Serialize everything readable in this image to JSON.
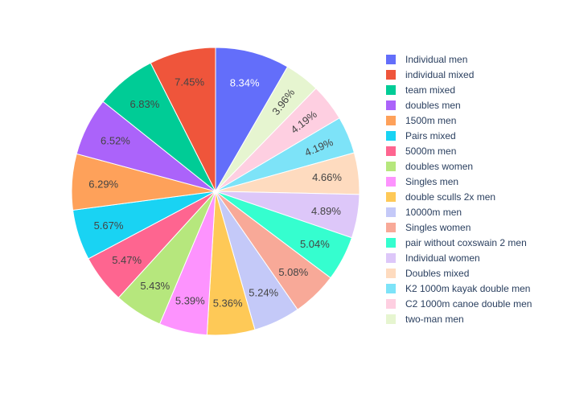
{
  "chart_data": {
    "type": "pie",
    "direction": "clockwise",
    "start_angle_deg": 0,
    "legend_position": "right",
    "slices": [
      {
        "label": "Individual men",
        "percent": 8.34,
        "display": "8.34%",
        "color": "#636efa",
        "label_color": "#ffffff"
      },
      {
        "label": "two-man men",
        "percent": 3.96,
        "display": "3.96%",
        "color": "#e6f5d0",
        "label_color": "#444444"
      },
      {
        "label": "C2 1000m canoe double men",
        "percent": 4.19,
        "display": "4.19%",
        "color": "#fecfe1",
        "label_color": "#444444"
      },
      {
        "label": "K2 1000m kayak double men",
        "percent": 4.19,
        "display": "4.19%",
        "color": "#7de3f8",
        "label_color": "#444444"
      },
      {
        "label": "Doubles mixed",
        "percent": 4.66,
        "display": "4.66%",
        "color": "#fedbbf",
        "label_color": "#444444"
      },
      {
        "label": "Individual women",
        "percent": 4.89,
        "display": "4.89%",
        "color": "#ddc7f9",
        "label_color": "#444444"
      },
      {
        "label": "pair without coxswain 2 men",
        "percent": 5.04,
        "display": "5.04%",
        "color": "#35fecf",
        "label_color": "#444444"
      },
      {
        "label": "Singles women",
        "percent": 5.08,
        "display": "5.08%",
        "color": "#f8a998",
        "label_color": "#444444"
      },
      {
        "label": "10000m men",
        "percent": 5.24,
        "display": "5.24%",
        "color": "#c4c9f8",
        "label_color": "#444444"
      },
      {
        "label": "double sculls 2x men",
        "percent": 5.36,
        "display": "5.36%",
        "color": "#fec957",
        "label_color": "#444444"
      },
      {
        "label": "Singles men",
        "percent": 5.39,
        "display": "5.39%",
        "color": "#fd93fe",
        "label_color": "#444444"
      },
      {
        "label": "doubles women",
        "percent": 5.43,
        "display": "5.43%",
        "color": "#b6e77d",
        "label_color": "#444444"
      },
      {
        "label": "5000m men",
        "percent": 5.47,
        "display": "5.47%",
        "color": "#fe6590",
        "label_color": "#444444"
      },
      {
        "label": "Pairs mixed",
        "percent": 5.67,
        "display": "5.67%",
        "color": "#19d3f3",
        "label_color": "#444444"
      },
      {
        "label": "1500m men",
        "percent": 6.29,
        "display": "6.29%",
        "color": "#fea15a",
        "label_color": "#444444"
      },
      {
        "label": "doubles men",
        "percent": 6.52,
        "display": "6.52%",
        "color": "#ab63fa",
        "label_color": "#444444"
      },
      {
        "label": "team mixed",
        "percent": 6.83,
        "display": "6.83%",
        "color": "#00cc96",
        "label_color": "#444444"
      },
      {
        "label": "individual mixed",
        "percent": 7.45,
        "display": "7.45%",
        "color": "#ef553b",
        "label_color": "#444444"
      }
    ],
    "legend": [
      {
        "label": "Individual men",
        "color": "#636efa"
      },
      {
        "label": "individual mixed",
        "color": "#ef553b"
      },
      {
        "label": "team mixed",
        "color": "#00cc96"
      },
      {
        "label": "doubles men",
        "color": "#ab63fa"
      },
      {
        "label": "1500m men",
        "color": "#fea15a"
      },
      {
        "label": "Pairs mixed",
        "color": "#19d3f3"
      },
      {
        "label": "5000m men",
        "color": "#fe6590"
      },
      {
        "label": "doubles women",
        "color": "#b6e77d"
      },
      {
        "label": "Singles men",
        "color": "#fd93fe"
      },
      {
        "label": "double sculls 2x men",
        "color": "#fec957"
      },
      {
        "label": "10000m men",
        "color": "#c4c9f8"
      },
      {
        "label": "Singles women",
        "color": "#f8a998"
      },
      {
        "label": "pair without coxswain 2 men",
        "color": "#35fecf"
      },
      {
        "label": "Individual women",
        "color": "#ddc7f9"
      },
      {
        "label": "Doubles mixed",
        "color": "#fedbbf"
      },
      {
        "label": "K2 1000m kayak double men",
        "color": "#7de3f8"
      },
      {
        "label": "C2 1000m canoe double men",
        "color": "#fecfe1"
      },
      {
        "label": "two-man men",
        "color": "#e6f5d0"
      }
    ]
  }
}
